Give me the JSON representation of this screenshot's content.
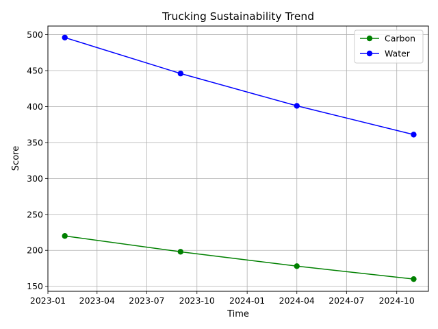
{
  "chart_data": {
    "type": "line",
    "title": "Trucking Sustainability Trend",
    "xlabel": "Time",
    "ylabel": "Score",
    "x": [
      "2023-02-01",
      "2023-09-01",
      "2024-04-01",
      "2024-11-01"
    ],
    "x_ticks": [
      "2023-01",
      "2023-04",
      "2023-07",
      "2023-10",
      "2024-01",
      "2024-04",
      "2024-07",
      "2024-10"
    ],
    "xlim": [
      "2023-01-01",
      "2024-11-28"
    ],
    "y_ticks": [
      150,
      200,
      250,
      300,
      350,
      400,
      450,
      500
    ],
    "ylim": [
      143,
      512
    ],
    "grid": true,
    "legend_position": "upper right",
    "series": [
      {
        "name": "Carbon",
        "color": "#008000",
        "marker": "circle",
        "values": [
          220,
          198,
          178,
          160
        ]
      },
      {
        "name": "Water",
        "color": "#0000ff",
        "marker": "circle",
        "values": [
          496,
          446,
          401,
          361
        ]
      }
    ]
  }
}
